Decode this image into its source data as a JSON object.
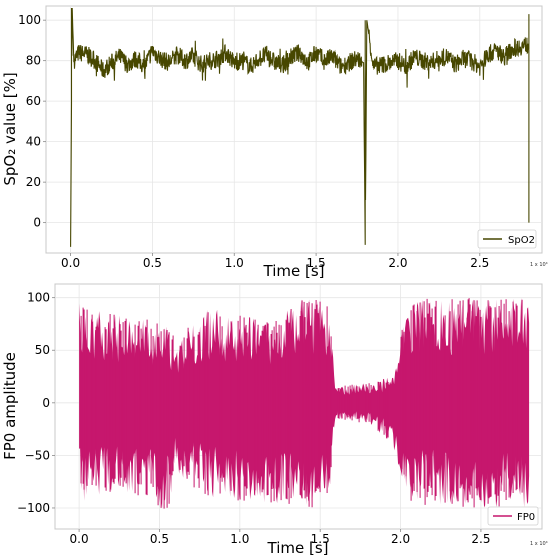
{
  "chart_data": [
    {
      "type": "line",
      "xlabel": "Time [s]",
      "ylabel": "SpO₂ value [%]",
      "x_offset_label": "1 x 10⁴",
      "xlim": [
        -0.15,
        2.88
      ],
      "ylim": [
        -15,
        107
      ],
      "xticks": [
        0.0,
        0.5,
        1.0,
        1.5,
        2.0,
        2.5
      ],
      "xtick_labels": [
        "0.0",
        "0.5",
        "1.0",
        "1.5",
        "2.0",
        "2.5"
      ],
      "yticks": [
        0,
        20,
        40,
        60,
        80,
        100
      ],
      "ytick_labels": [
        "0",
        "20",
        "40",
        "60",
        "80",
        "100"
      ],
      "grid": true,
      "legend_position": "bottom-right",
      "series": [
        {
          "name": "SpO2",
          "color": "#474700",
          "x": [
            0.0,
            0.01,
            0.02,
            0.05,
            0.1,
            0.15,
            0.2,
            0.25,
            0.3,
            0.35,
            0.4,
            0.45,
            0.5,
            0.55,
            0.6,
            0.65,
            0.7,
            0.75,
            0.8,
            0.85,
            0.9,
            0.95,
            1.0,
            1.05,
            1.1,
            1.15,
            1.2,
            1.25,
            1.3,
            1.35,
            1.4,
            1.45,
            1.5,
            1.55,
            1.6,
            1.65,
            1.7,
            1.75,
            1.79,
            1.8,
            1.81,
            1.85,
            1.9,
            1.95,
            2.0,
            2.05,
            2.1,
            2.15,
            2.2,
            2.25,
            2.3,
            2.35,
            2.4,
            2.45,
            2.5,
            2.55,
            2.6,
            2.65,
            2.7,
            2.75,
            2.8
          ],
          "y": [
            -12,
            106,
            80,
            84,
            83,
            80,
            75,
            79,
            82,
            78,
            81,
            77,
            85,
            81,
            79,
            83,
            80,
            82,
            78,
            80,
            81,
            84,
            79,
            80,
            77,
            81,
            83,
            79,
            78,
            82,
            84,
            79,
            84,
            80,
            82,
            77,
            79,
            81,
            79,
            -11,
            100,
            77,
            78,
            79,
            80,
            77,
            82,
            80,
            79,
            81,
            82,
            78,
            81,
            80,
            77,
            83,
            85,
            82,
            86,
            87,
            88
          ]
        }
      ]
    },
    {
      "type": "line",
      "xlabel": "Time [s]",
      "ylabel": "FP0 amplitude",
      "x_offset_label": "1 x 10⁴",
      "xlim": [
        -0.15,
        2.88
      ],
      "ylim": [
        -120,
        113
      ],
      "xticks": [
        0.0,
        0.5,
        1.0,
        1.5,
        2.0,
        2.5
      ],
      "xtick_labels": [
        "0.0",
        "0.5",
        "1.0",
        "1.5",
        "2.0",
        "2.5"
      ],
      "yticks": [
        -100,
        -50,
        0,
        50,
        100
      ],
      "ytick_labels": [
        "−100",
        "−50",
        "0",
        "50",
        "100"
      ],
      "grid": true,
      "legend_position": "bottom-right",
      "series": [
        {
          "name": "FP0",
          "color": "#c6176d",
          "x_range": [
            0.0,
            2.8
          ],
          "envelope": {
            "x": [
              0.0,
              0.2,
              0.4,
              0.55,
              0.6,
              0.8,
              1.0,
              1.2,
              1.35,
              1.5,
              1.55,
              1.6,
              1.8,
              1.95,
              2.05,
              2.3,
              2.5,
              2.6,
              2.8
            ],
            "upper": [
              95,
              85,
              80,
              75,
              60,
              90,
              85,
              75,
              100,
              100,
              100,
              15,
              20,
              25,
              100,
              100,
              100,
              100,
              100
            ],
            "lower": [
              -95,
              -85,
              -90,
              -105,
              -70,
              -90,
              -95,
              -95,
              -100,
              -100,
              -100,
              -15,
              -20,
              -40,
              -95,
              -100,
              -100,
              -100,
              -100
            ]
          }
        }
      ]
    }
  ]
}
